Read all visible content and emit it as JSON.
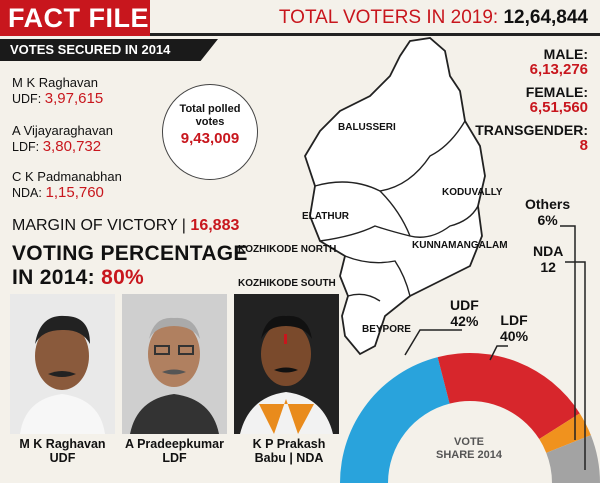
{
  "header": {
    "title": "FACT FILE",
    "total_label": "TOTAL VOTERS IN 2019:",
    "total_value": "12,64,844"
  },
  "votes_2014": {
    "heading": "VOTES SECURED IN 2014",
    "candidates": [
      {
        "name": "M K Raghavan",
        "party": "UDF:",
        "votes": "3,97,615"
      },
      {
        "name": "A Vijayaraghavan",
        "party": "LDF:",
        "votes": "3,80,732"
      },
      {
        "name": "C K Padmanabhan",
        "party": "NDA:",
        "votes": "1,15,760"
      }
    ],
    "total_polled_label": "Total polled votes",
    "total_polled_value": "9,43,009"
  },
  "margin": {
    "label": "MARGIN OF VICTORY |",
    "value": "16,883"
  },
  "voting_percentage": {
    "line1": "VOTING PERCENTAGE",
    "line2": "IN 2014:",
    "value": "80%"
  },
  "candidates_2019": [
    {
      "name": "M K Raghavan",
      "party": "UDF"
    },
    {
      "name": "A Pradeepkumar",
      "party": "LDF"
    },
    {
      "name": "K P Prakash",
      "party": "Babu | NDA"
    }
  ],
  "voters": {
    "male_label": "MALE:",
    "male_value": "6,13,276",
    "female_label": "FEMALE:",
    "female_value": "6,51,560",
    "transgender_label": "TRANSGENDER:",
    "transgender_value": "8"
  },
  "map_labels": [
    "BALUSSERI",
    "KODUVALLY",
    "ELATHUR",
    "KOZHIKODE NORTH",
    "KUNNAMANGALAM",
    "KOZHIKODE SOUTH",
    "BEYPORE"
  ],
  "vote_share_title_line1": "VOTE",
  "vote_share_title_line2": "SHARE 2014",
  "colors": {
    "accent": "#c8161d",
    "udf": "#29a3dc",
    "ldf": "#d7262c",
    "others": "#f0921e",
    "nda": "#a3a3a3"
  },
  "chart_data": {
    "type": "pie",
    "title": "VOTE SHARE 2014",
    "slices": [
      {
        "label": "UDF",
        "value": 42,
        "display": "42%"
      },
      {
        "label": "LDF",
        "value": 40,
        "display": "40%"
      },
      {
        "label": "Others",
        "value": 6,
        "display": "6%"
      },
      {
        "label": "NDA",
        "value": 12,
        "display": "12"
      }
    ]
  }
}
